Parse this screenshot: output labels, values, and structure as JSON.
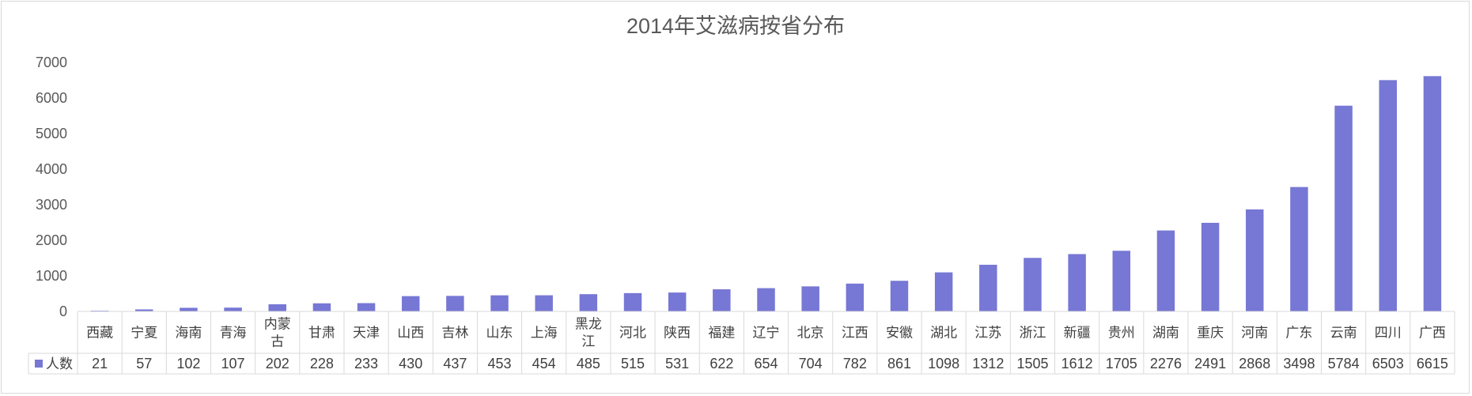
{
  "chart_data": {
    "type": "bar",
    "title": "2014年艾滋病按省分布",
    "xlabel": "",
    "ylabel": "",
    "ylim": [
      0,
      7000
    ],
    "yticks": [
      0,
      1000,
      2000,
      3000,
      4000,
      5000,
      6000,
      7000
    ],
    "grid": false,
    "legend_placement": "data-table-row-header",
    "categories": [
      "西藏",
      "宁夏",
      "海南",
      "青海",
      "内蒙古",
      "甘肃",
      "天津",
      "山西",
      "吉林",
      "山东",
      "上海",
      "黑龙江",
      "河北",
      "陕西",
      "福建",
      "辽宁",
      "北京",
      "江西",
      "安徽",
      "湖北",
      "江苏",
      "浙江",
      "新疆",
      "贵州",
      "湖南",
      "重庆",
      "河南",
      "广东",
      "云南",
      "四川",
      "广西"
    ],
    "series": [
      {
        "name": "人数",
        "color": "#7777d5",
        "values": [
          21,
          57,
          102,
          107,
          202,
          228,
          233,
          430,
          437,
          453,
          454,
          485,
          515,
          531,
          622,
          654,
          704,
          782,
          861,
          1098,
          1312,
          1505,
          1612,
          1705,
          2276,
          2491,
          2868,
          3498,
          5784,
          6503,
          6615
        ]
      }
    ]
  }
}
